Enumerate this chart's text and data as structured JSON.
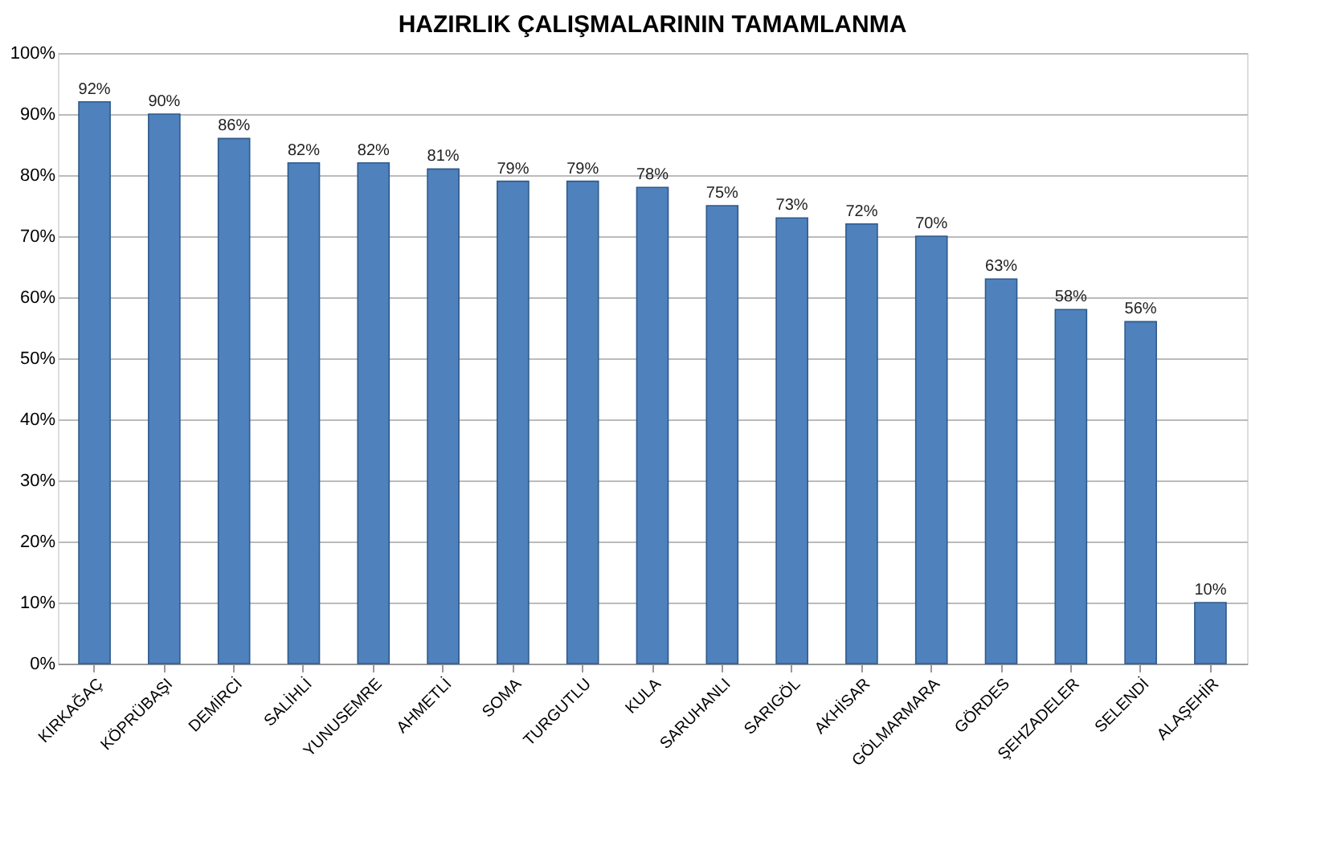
{
  "chart_data": {
    "type": "bar",
    "title": "HAZIRLIK ÇALIŞMALARININ TAMAMLANMA",
    "categories": [
      "KIRKAĞAÇ",
      "KÖPRÜBAŞI",
      "DEMİRCİ",
      "SALİHLİ",
      "YUNUSEMRE",
      "AHMETLİ",
      "SOMA",
      "TURGUTLU",
      "KULA",
      "SARUHANLI",
      "SARIGÖL",
      "AKHİSAR",
      "GÖLMARMARA",
      "GÖRDES",
      "ŞEHZADELER",
      "SELENDİ",
      "ALAŞEHİR"
    ],
    "values": [
      92,
      90,
      86,
      82,
      82,
      81,
      79,
      79,
      78,
      75,
      73,
      72,
      70,
      63,
      58,
      56,
      10
    ],
    "value_labels": [
      "92%",
      "90%",
      "86%",
      "82%",
      "82%",
      "81%",
      "79%",
      "79%",
      "78%",
      "75%",
      "73%",
      "72%",
      "70%",
      "63%",
      "58%",
      "56%",
      "10%"
    ],
    "color": "#4f81bd",
    "ylim": [
      0,
      100
    ],
    "yticks": [
      {
        "value": 0,
        "label": "0%"
      },
      {
        "value": 10,
        "label": "10%"
      },
      {
        "value": 20,
        "label": "20%"
      },
      {
        "value": 30,
        "label": "30%"
      },
      {
        "value": 40,
        "label": "40%"
      },
      {
        "value": 50,
        "label": "50%"
      },
      {
        "value": 60,
        "label": "60%"
      },
      {
        "value": 70,
        "label": "70%"
      },
      {
        "value": 80,
        "label": "80%"
      },
      {
        "value": 90,
        "label": "90%"
      },
      {
        "value": 100,
        "label": "100%"
      }
    ],
    "grid": "y"
  }
}
